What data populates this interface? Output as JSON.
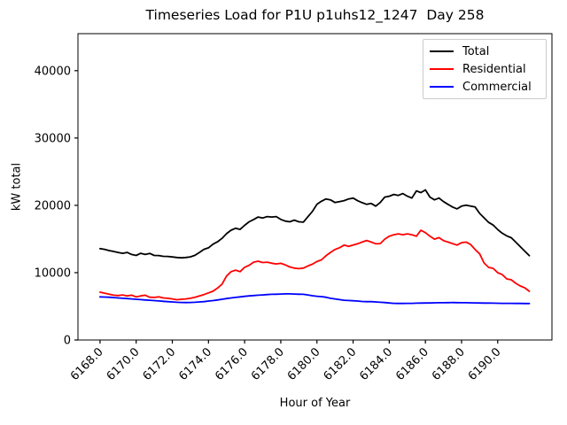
{
  "chart_data": {
    "type": "line",
    "title": "Timeseries Load for P1U p1uhs12_1247  Day 258",
    "xlabel": "Hour of Year",
    "ylabel": "kW total",
    "xlim": [
      6166.78,
      6193.0
    ],
    "ylim": [
      0,
      45500
    ],
    "grid": false,
    "legend_position": "upper right",
    "x_ticks": [
      6168,
      6170,
      6172,
      6174,
      6176,
      6178,
      6180,
      6182,
      6184,
      6186,
      6188,
      6190
    ],
    "x_tick_labels": [
      "6168.0",
      "6170.0",
      "6172.0",
      "6174.0",
      "6176.0",
      "6178.0",
      "6180.0",
      "6182.0",
      "6184.0",
      "6186.0",
      "6188.0",
      "6190.0"
    ],
    "y_ticks": [
      0,
      10000,
      20000,
      30000,
      40000
    ],
    "y_tick_labels": [
      "0",
      "10000",
      "20000",
      "30000",
      "40000"
    ],
    "x_start": 6168.0,
    "x_step": 0.25,
    "series": [
      {
        "name": "Total",
        "color": "#000000",
        "values": [
          13570,
          13470,
          13280,
          13150,
          13000,
          12880,
          13010,
          12700,
          12560,
          12880,
          12700,
          12860,
          12560,
          12540,
          12430,
          12420,
          12340,
          12260,
          12210,
          12260,
          12350,
          12570,
          13010,
          13460,
          13690,
          14230,
          14580,
          15100,
          15800,
          16300,
          16600,
          16420,
          17030,
          17560,
          17900,
          18260,
          18120,
          18330,
          18260,
          18330,
          17910,
          17660,
          17560,
          17810,
          17560,
          17500,
          18300,
          19100,
          20150,
          20600,
          20950,
          20820,
          20420,
          20550,
          20700,
          20950,
          21080,
          20680,
          20400,
          20150,
          20280,
          19880,
          20420,
          21220,
          21350,
          21620,
          21480,
          21750,
          21350,
          21080,
          22150,
          21890,
          22290,
          21220,
          20820,
          21080,
          20550,
          20150,
          19750,
          19480,
          19880,
          20010,
          19880,
          19750,
          18810,
          18140,
          17470,
          17070,
          16400,
          15860,
          15460,
          15190,
          14530,
          13860,
          13190,
          12520
        ]
      },
      {
        "name": "Residential",
        "color": "#ff0000",
        "values": [
          7100,
          6950,
          6800,
          6650,
          6600,
          6700,
          6550,
          6650,
          6400,
          6550,
          6650,
          6350,
          6320,
          6400,
          6250,
          6200,
          6100,
          5980,
          6050,
          6100,
          6200,
          6350,
          6550,
          6750,
          7000,
          7250,
          7700,
          8300,
          9500,
          10150,
          10380,
          10150,
          10800,
          11100,
          11560,
          11700,
          11500,
          11560,
          11400,
          11300,
          11390,
          11150,
          10850,
          10680,
          10600,
          10680,
          11000,
          11260,
          11650,
          11900,
          12500,
          13000,
          13440,
          13700,
          14100,
          13900,
          14100,
          14300,
          14550,
          14780,
          14550,
          14300,
          14320,
          14980,
          15410,
          15640,
          15770,
          15640,
          15770,
          15640,
          15410,
          16300,
          15940,
          15410,
          14980,
          15200,
          14760,
          14550,
          14320,
          14100,
          14450,
          14550,
          14190,
          13440,
          12790,
          11430,
          10780,
          10640,
          9990,
          9720,
          9070,
          8940,
          8410,
          8020,
          7750,
          7230
        ]
      },
      {
        "name": "Commercial",
        "color": "#0000ff",
        "values": [
          6400,
          6380,
          6350,
          6300,
          6250,
          6200,
          6150,
          6100,
          6050,
          6000,
          5950,
          5900,
          5850,
          5800,
          5750,
          5700,
          5650,
          5600,
          5570,
          5560,
          5570,
          5600,
          5650,
          5700,
          5780,
          5850,
          5950,
          6050,
          6150,
          6250,
          6320,
          6400,
          6480,
          6550,
          6600,
          6650,
          6700,
          6750,
          6780,
          6800,
          6820,
          6850,
          6850,
          6820,
          6800,
          6780,
          6700,
          6570,
          6500,
          6450,
          6350,
          6200,
          6100,
          6000,
          5900,
          5870,
          5820,
          5780,
          5720,
          5690,
          5690,
          5650,
          5600,
          5560,
          5500,
          5450,
          5430,
          5430,
          5450,
          5450,
          5470,
          5480,
          5500,
          5500,
          5520,
          5530,
          5540,
          5550,
          5560,
          5550,
          5540,
          5530,
          5520,
          5510,
          5500,
          5490,
          5480,
          5470,
          5460,
          5450,
          5440,
          5440,
          5430,
          5430,
          5420,
          5420
        ]
      }
    ]
  }
}
